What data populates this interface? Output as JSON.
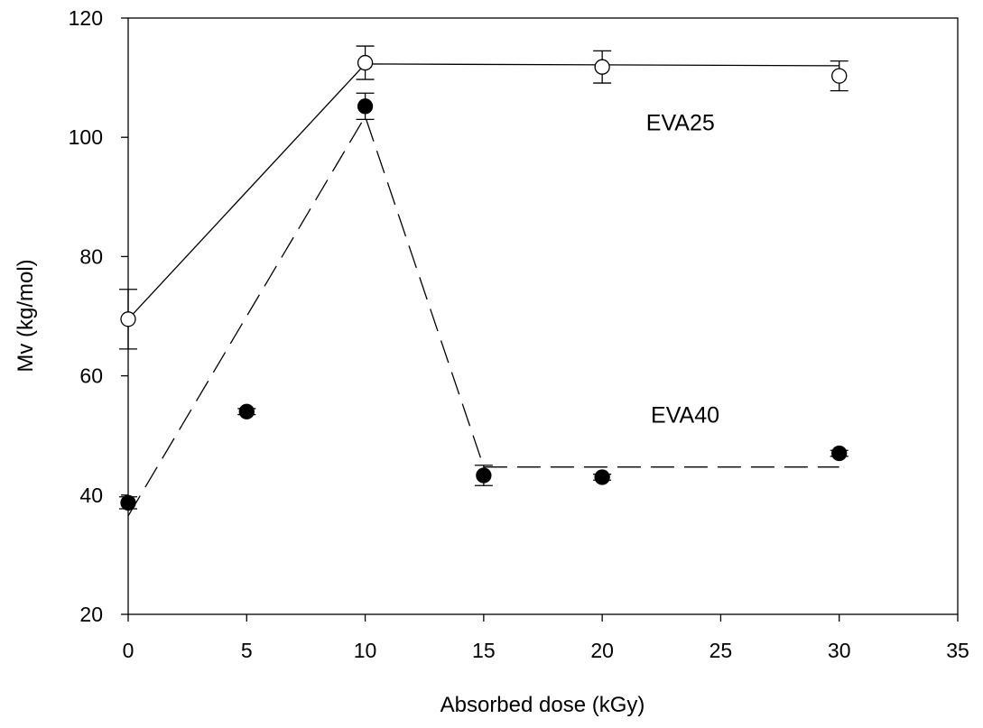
{
  "chart_data": {
    "type": "scatter",
    "title": "",
    "xlabel": "Absorbed dose (kGy)",
    "ylabel": "Mv (kg/mol)",
    "xlim": [
      0,
      35
    ],
    "ylim": [
      20,
      120
    ],
    "xticks": [
      0,
      5,
      10,
      15,
      20,
      25,
      30,
      35
    ],
    "yticks": [
      20,
      40,
      60,
      80,
      100,
      120
    ],
    "grid": false,
    "series": [
      {
        "name": "EVA25",
        "marker": "open-circle",
        "line_style": "solid",
        "points": [
          {
            "x": 0,
            "y": 69.5,
            "err": 5.0
          },
          {
            "x": 10,
            "y": 112.5,
            "err": 2.8
          },
          {
            "x": 20,
            "y": 111.8,
            "err": 2.7
          },
          {
            "x": 30,
            "y": 110.3,
            "err": 2.5
          }
        ],
        "fit_line": [
          {
            "x": 0,
            "y": 69.5
          },
          {
            "x": 10,
            "y": 112.3
          },
          {
            "x": 30,
            "y": 112.0
          }
        ]
      },
      {
        "name": "EVA40",
        "marker": "filled-circle",
        "line_style": "dashed",
        "points": [
          {
            "x": 0,
            "y": 38.7,
            "err": 1.0
          },
          {
            "x": 5,
            "y": 54.0,
            "err": 0.5
          },
          {
            "x": 10,
            "y": 105.2,
            "err": 2.2
          },
          {
            "x": 15,
            "y": 43.3,
            "err": 1.7
          },
          {
            "x": 20,
            "y": 43.0,
            "err": 0.5
          },
          {
            "x": 30,
            "y": 47.0,
            "err": 0.5
          }
        ],
        "fit_line": [
          {
            "x": 0,
            "y": 36.5
          },
          {
            "x": 10,
            "y": 103.5
          },
          {
            "x": 15,
            "y": 44.7
          },
          {
            "x": 30,
            "y": 44.7
          }
        ]
      }
    ],
    "annotations": [
      {
        "text": "EVA25",
        "series": "EVA25",
        "x": 23.3,
        "y": 102.5
      },
      {
        "text": "EVA40",
        "series": "EVA40",
        "x": 23.5,
        "y": 53.5
      }
    ]
  }
}
